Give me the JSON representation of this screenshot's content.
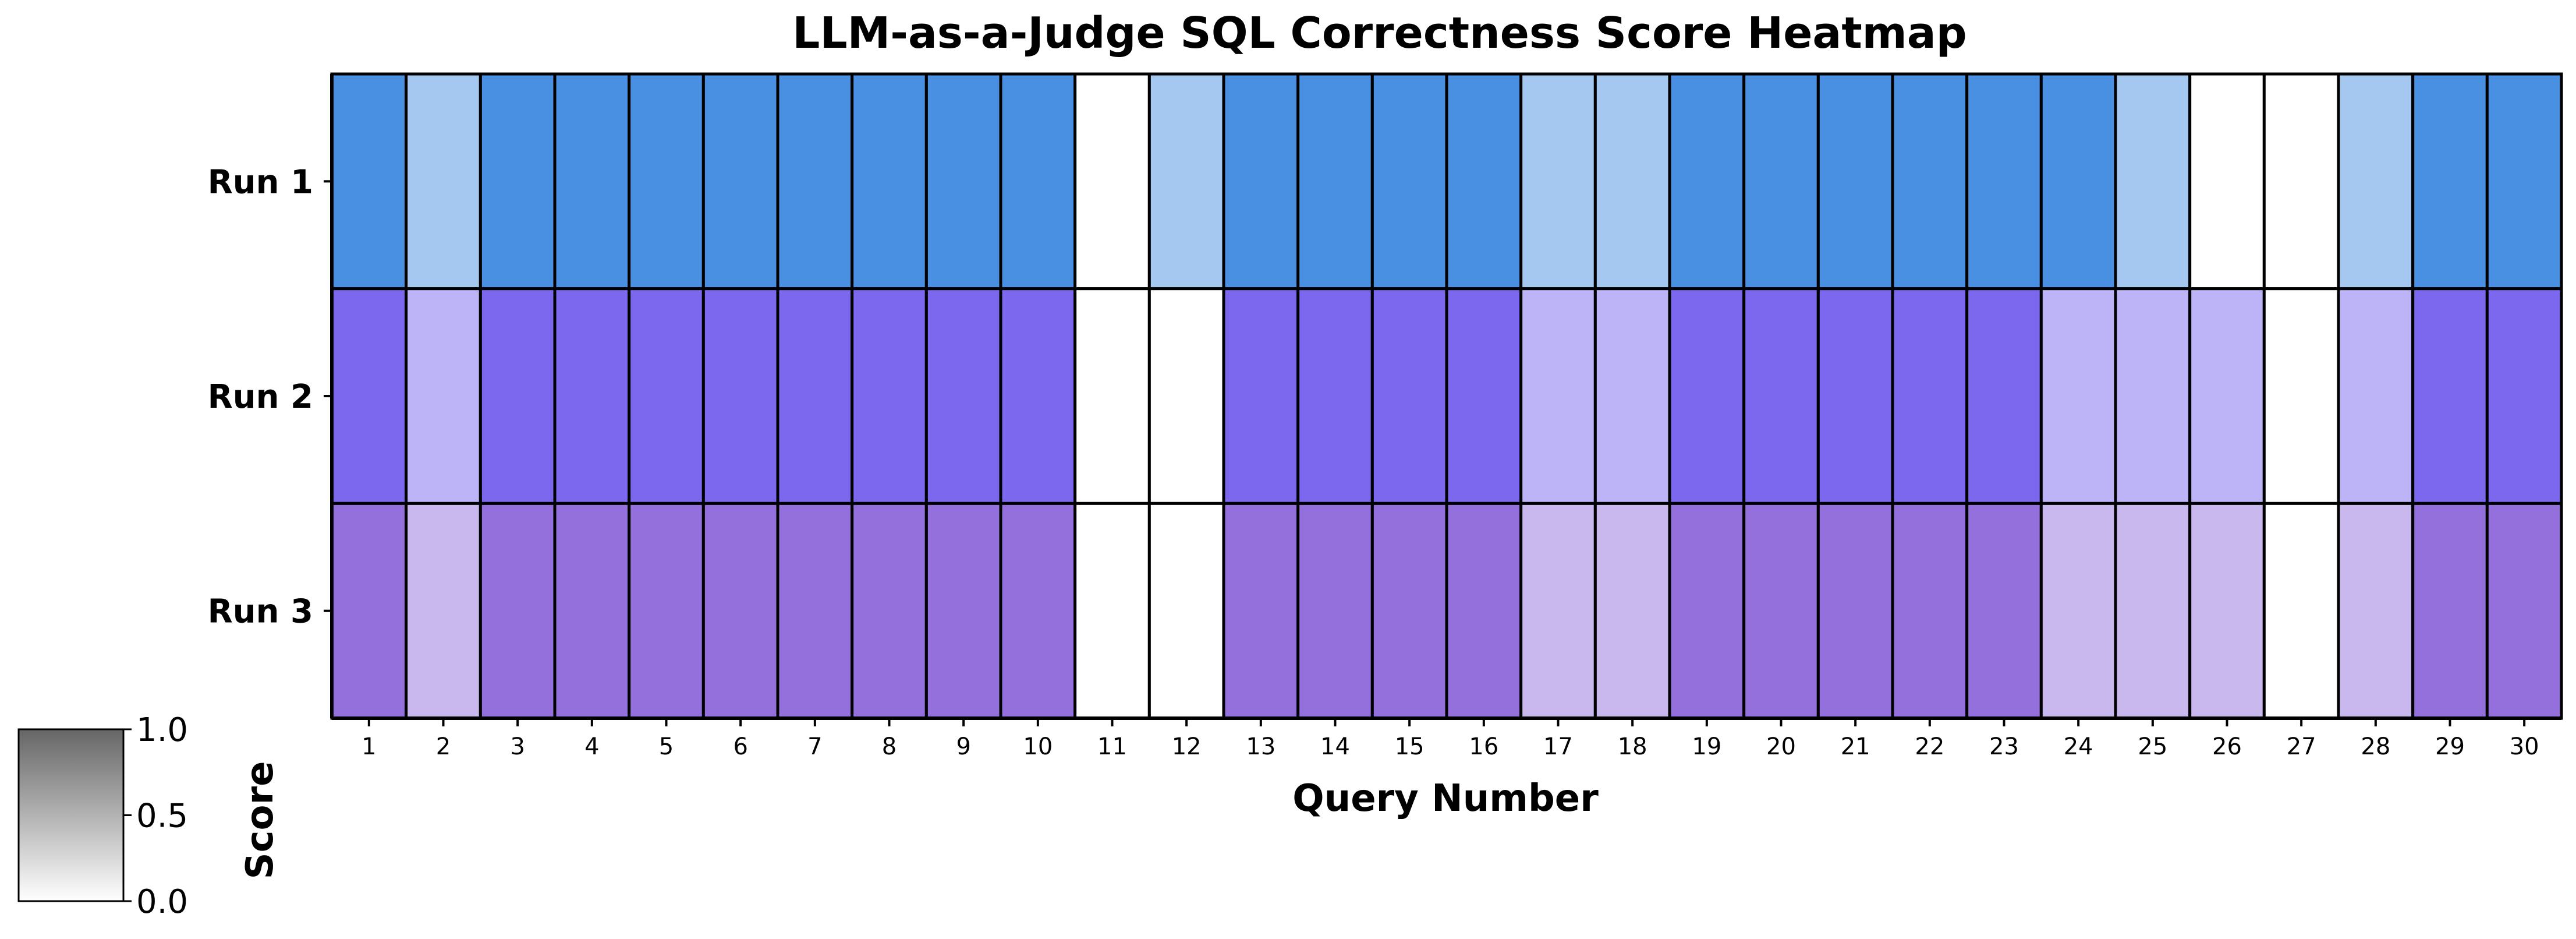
{
  "chart_data": {
    "type": "heatmap",
    "title": "LLM-as-a-Judge SQL Correctness Score Heatmap",
    "xlabel": "Query Number",
    "ylabel": "",
    "x_categories": [
      "1",
      "2",
      "3",
      "4",
      "5",
      "6",
      "7",
      "8",
      "9",
      "10",
      "11",
      "12",
      "13",
      "14",
      "15",
      "16",
      "17",
      "18",
      "19",
      "20",
      "21",
      "22",
      "23",
      "24",
      "25",
      "26",
      "27",
      "28",
      "29",
      "30"
    ],
    "y_categories": [
      "Run 1",
      "Run 2",
      "Run 3"
    ],
    "row_colors": [
      "#4a90e2",
      "#7b68ee",
      "#9370db"
    ],
    "values": [
      [
        1,
        0.5,
        1,
        1,
        1,
        1,
        1,
        1,
        1,
        1,
        0,
        0.5,
        1,
        1,
        1,
        1,
        0.5,
        0.5,
        1,
        1,
        1,
        1,
        1,
        1,
        0.5,
        0,
        0,
        0.5,
        1,
        1
      ],
      [
        1,
        0.5,
        1,
        1,
        1,
        1,
        1,
        1,
        1,
        1,
        0,
        0,
        1,
        1,
        1,
        1,
        0.5,
        0.5,
        1,
        1,
        1,
        1,
        1,
        0.5,
        0.5,
        0.5,
        0,
        0.5,
        1,
        1
      ],
      [
        1,
        0.5,
        1,
        1,
        1,
        1,
        1,
        1,
        1,
        1,
        0,
        0,
        1,
        1,
        1,
        1,
        0.5,
        0.5,
        1,
        1,
        1,
        1,
        1,
        0.5,
        0.5,
        0.5,
        0,
        0.5,
        1,
        1
      ]
    ],
    "colorbar": {
      "label": "Score",
      "range": [
        0.0,
        1.0
      ],
      "ticks": [
        "1.0",
        "0.5",
        "0.0"
      ]
    }
  }
}
